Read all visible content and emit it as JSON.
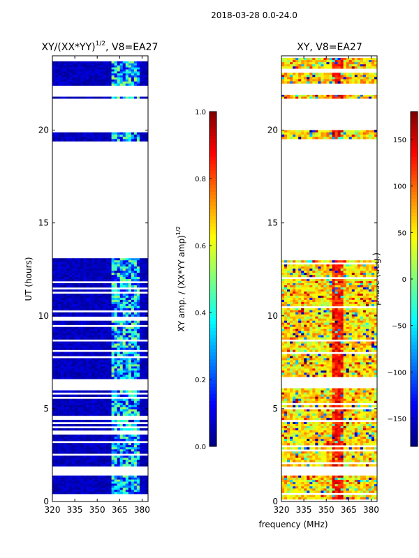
{
  "suptitle": "2018-03-28 0.0-24.0",
  "xlabel_shared": "frequency (MHz)",
  "colors": {
    "jet": [
      "#00007f",
      "#0000ff",
      "#007fff",
      "#00ffff",
      "#7fff7f",
      "#ffff00",
      "#ff7f00",
      "#ff0000",
      "#7f0000"
    ],
    "background": "#ffffff",
    "axis": "#000000"
  },
  "chart_data": [
    {
      "type": "heatmap",
      "title_prefix": "XY/(XX*YY)",
      "title_exponent": "1/2",
      "title_suffix": ", V8=EA27",
      "xlabel": "",
      "ylabel": "UT (hours)",
      "xlim": [
        320,
        384
      ],
      "ylim": [
        0,
        24
      ],
      "x_ticks": [
        320,
        335,
        350,
        365,
        380
      ],
      "y_ticks": [
        0,
        5,
        10,
        15,
        20
      ],
      "x_tick_labels": [
        "320",
        "335",
        "350",
        "365",
        "380"
      ],
      "y_tick_labels": [
        "0",
        "5",
        "10",
        "15",
        "20"
      ],
      "colorbar": {
        "label": "XY amp. / (XX*YY amp)",
        "label_exponent": "1/2",
        "range": [
          0.0,
          1.0
        ],
        "ticks": [
          0.0,
          0.2,
          0.4,
          0.6,
          0.8,
          1.0
        ],
        "tick_labels": [
          "0.0",
          "0.2",
          "0.4",
          "0.6",
          "0.8",
          "1.0"
        ]
      },
      "data_bands_ut": [
        [
          0.3,
          1.4
        ],
        [
          1.9,
          6.1
        ],
        [
          6.6,
          13.1
        ],
        [
          19.4,
          20.0
        ],
        [
          21.7,
          22.0
        ],
        [
          22.4,
          23.7
        ]
      ],
      "gap_bands_ut": [
        [
          1.4,
          1.9
        ],
        [
          6.1,
          6.6
        ],
        [
          13.1,
          19.4
        ],
        [
          20.0,
          21.7
        ],
        [
          22.0,
          22.4
        ]
      ],
      "high_amplitude_freq_range_mhz": [
        360,
        378
      ],
      "typical_amplitude_low": 0.05,
      "typical_amplitude_high": 0.35
    },
    {
      "type": "heatmap",
      "title": "XY, V8=EA27",
      "xlabel": "frequency (MHz)",
      "ylabel": "",
      "xlim": [
        320,
        384
      ],
      "ylim": [
        0,
        24
      ],
      "x_ticks": [
        320,
        335,
        350,
        365,
        380
      ],
      "y_ticks": [
        0,
        5,
        10,
        15,
        20
      ],
      "x_tick_labels": [
        "320",
        "335",
        "350",
        "365",
        "380"
      ],
      "y_tick_labels": [
        "0",
        "5",
        "10",
        "15",
        "20"
      ],
      "colorbar": {
        "label": "phase (deg.)",
        "range": [
          -180,
          180
        ],
        "ticks": [
          -150,
          -100,
          -50,
          0,
          50,
          100,
          150
        ],
        "tick_labels": [
          "−150",
          "−100",
          "−50",
          "0",
          "50",
          "100",
          "150"
        ]
      },
      "data_bands_ut": [
        [
          0.0,
          1.4
        ],
        [
          1.9,
          6.1
        ],
        [
          6.6,
          13.1
        ],
        [
          19.4,
          20.0
        ],
        [
          21.7,
          22.0
        ],
        [
          22.4,
          24.0
        ]
      ],
      "gap_bands_ut": [
        [
          1.4,
          1.9
        ],
        [
          6.1,
          6.6
        ],
        [
          13.1,
          19.4
        ],
        [
          20.0,
          21.7
        ],
        [
          22.0,
          22.4
        ]
      ],
      "dominant_phase_deg": [
        40,
        110
      ],
      "phase_ridge_freq_mhz": 358
    }
  ]
}
